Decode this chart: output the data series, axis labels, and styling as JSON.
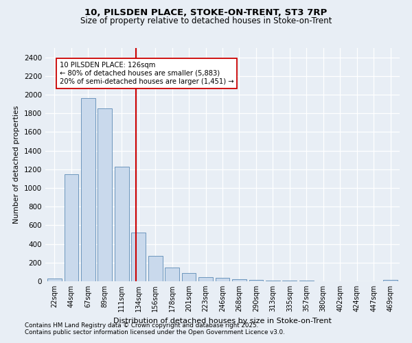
{
  "title1": "10, PILSDEN PLACE, STOKE-ON-TRENT, ST3 7RP",
  "title2": "Size of property relative to detached houses in Stoke-on-Trent",
  "xlabel": "Distribution of detached houses by size in Stoke-on-Trent",
  "ylabel": "Number of detached properties",
  "bar_labels": [
    "22sqm",
    "44sqm",
    "67sqm",
    "89sqm",
    "111sqm",
    "134sqm",
    "156sqm",
    "178sqm",
    "201sqm",
    "223sqm",
    "246sqm",
    "268sqm",
    "290sqm",
    "313sqm",
    "335sqm",
    "357sqm",
    "380sqm",
    "402sqm",
    "424sqm",
    "447sqm",
    "469sqm"
  ],
  "bar_values": [
    28,
    1150,
    1960,
    1855,
    1230,
    520,
    275,
    150,
    90,
    45,
    38,
    20,
    15,
    8,
    5,
    4,
    3,
    2,
    2,
    1,
    15
  ],
  "bar_color": "#c9d9ec",
  "bar_edgecolor": "#5b8ab5",
  "vline_color": "#cc0000",
  "annotation_text": "10 PILSDEN PLACE: 126sqm\n← 80% of detached houses are smaller (5,883)\n20% of semi-detached houses are larger (1,451) →",
  "annotation_box_color": "#ffffff",
  "annotation_box_edgecolor": "#cc0000",
  "ylim": [
    0,
    2500
  ],
  "yticks": [
    0,
    200,
    400,
    600,
    800,
    1000,
    1200,
    1400,
    1600,
    1800,
    2000,
    2200,
    2400
  ],
  "background_color": "#e8eef5",
  "footnote1": "Contains HM Land Registry data © Crown copyright and database right 2025.",
  "footnote2": "Contains public sector information licensed under the Open Government Licence v3.0."
}
